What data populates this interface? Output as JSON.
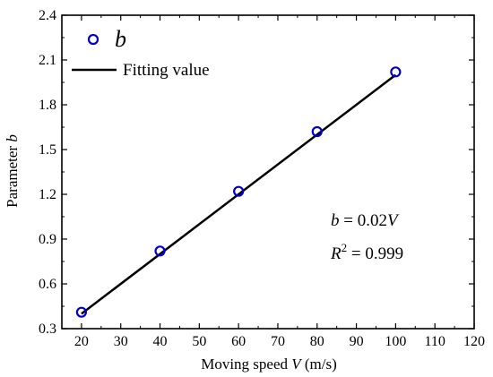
{
  "chart_data": {
    "type": "scatter",
    "xlabel_prefix": "Moving speed ",
    "xlabel_var": "V",
    "xlabel_suffix": " (m/s)",
    "ylabel_prefix": "Parameter ",
    "ylabel_var": "b",
    "xlim": [
      15,
      120
    ],
    "ylim": [
      0.3,
      2.4
    ],
    "xticks": [
      20,
      30,
      40,
      50,
      60,
      70,
      80,
      90,
      100,
      110,
      120
    ],
    "yticks": [
      0.3,
      0.6,
      0.9,
      1.2,
      1.5,
      1.8,
      2.1,
      2.4
    ],
    "grid": false,
    "legend_position": "top-left",
    "series": [
      {
        "name": "b",
        "kind": "scatter",
        "marker": "open-circle",
        "color": "#0000cc",
        "x": [
          20,
          40,
          60,
          80,
          100
        ],
        "y": [
          0.41,
          0.82,
          1.22,
          1.62,
          2.02
        ]
      },
      {
        "name": "Fitting value",
        "kind": "line",
        "color": "#000000",
        "x": [
          20,
          100
        ],
        "y": [
          0.4,
          2.0
        ]
      }
    ],
    "annotations": {
      "eq_var": "b",
      "eq_mid": " = 0.02",
      "eq_var2": "V",
      "r2_var": "R",
      "r2_sup": "2",
      "r2_rest": " = 0.999"
    }
  }
}
